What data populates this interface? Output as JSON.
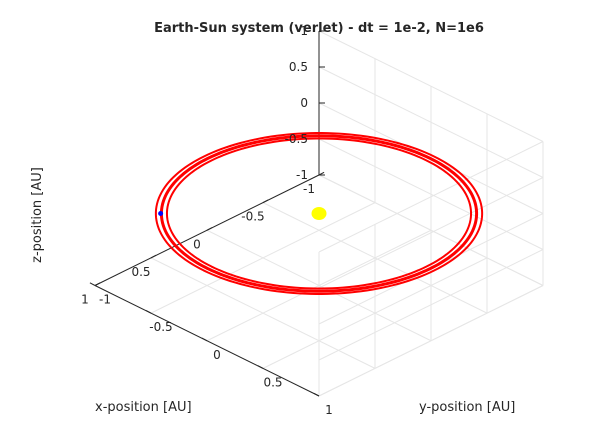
{
  "chart_data": {
    "type": "line3d",
    "title": "Earth-Sun system (verlet) - dt = 1e-2, N=1e6",
    "xlabel": "x-position [AU]",
    "ylabel": "y-position [AU]",
    "zlabel": "z-position [AU]",
    "xlim": [
      -1,
      1
    ],
    "ylim": [
      -1,
      1
    ],
    "zlim": [
      -1,
      1
    ],
    "xticks": [
      -1,
      -0.5,
      0,
      0.5,
      1
    ],
    "yticks": [
      -1,
      -0.5,
      0,
      0.5,
      1
    ],
    "zticks": [
      -1,
      -0.5,
      0,
      0.5,
      1
    ],
    "xtick_labels": [
      "-1",
      "-0.5",
      "0",
      "0.5",
      "1"
    ],
    "ytick_labels": [
      "-1",
      "-0.5",
      "0",
      "0.5",
      "1"
    ],
    "ztick_labels": [
      "-1",
      "-0.5",
      "0",
      "0.5",
      "1"
    ],
    "grid": true,
    "view": "3d-default",
    "series": [
      {
        "label": "orbit",
        "color": "#ff0000",
        "shape": "circle",
        "center": [
          0,
          0,
          0
        ],
        "radius_min": 0.96,
        "radius_max": 1.03,
        "z": 0
      },
      {
        "label": "sun",
        "color": "#ffff00",
        "point": [
          0,
          0,
          0
        ]
      },
      {
        "label": "earth-final",
        "color": "#0000ff",
        "point": [
          0.707,
          -0.707,
          0
        ]
      }
    ]
  }
}
